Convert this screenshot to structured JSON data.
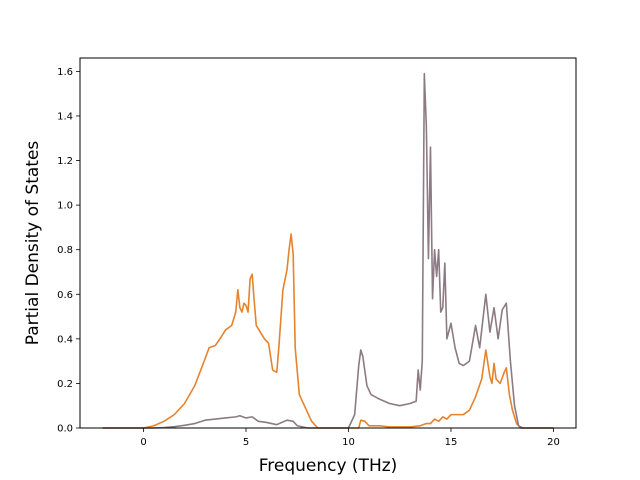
{
  "chart_data": {
    "type": "line",
    "title": "",
    "xlabel": "Frequency (THz)",
    "ylabel": "Partial Density of States",
    "xlim": [
      -3.1,
      21.1
    ],
    "ylim": [
      0.0,
      1.66
    ],
    "x_ticks": [
      0,
      5,
      10,
      15,
      20
    ],
    "x_tick_labels": [
      "0",
      "5",
      "10",
      "15",
      "20"
    ],
    "y_ticks": [
      0.0,
      0.2,
      0.4,
      0.6,
      0.8,
      1.0,
      1.2,
      1.4,
      1.6
    ],
    "y_tick_labels": [
      "0.0",
      "0.2",
      "0.4",
      "0.6",
      "0.8",
      "1.0",
      "1.2",
      "1.4",
      "1.6"
    ],
    "grid": false,
    "legend": "none",
    "series": [
      {
        "color": "#e6832c",
        "points": [
          [
            -2.0,
            0.0
          ],
          [
            -1.0,
            0.0
          ],
          [
            0.0,
            0.0
          ],
          [
            0.5,
            0.01
          ],
          [
            1.0,
            0.03
          ],
          [
            1.5,
            0.06
          ],
          [
            2.0,
            0.11
          ],
          [
            2.5,
            0.19
          ],
          [
            3.0,
            0.31
          ],
          [
            3.2,
            0.36
          ],
          [
            3.5,
            0.37
          ],
          [
            3.8,
            0.41
          ],
          [
            4.0,
            0.44
          ],
          [
            4.3,
            0.46
          ],
          [
            4.5,
            0.52
          ],
          [
            4.6,
            0.62
          ],
          [
            4.7,
            0.54
          ],
          [
            4.8,
            0.52
          ],
          [
            4.9,
            0.56
          ],
          [
            5.0,
            0.55
          ],
          [
            5.1,
            0.52
          ],
          [
            5.2,
            0.67
          ],
          [
            5.3,
            0.69
          ],
          [
            5.4,
            0.57
          ],
          [
            5.5,
            0.46
          ],
          [
            5.7,
            0.43
          ],
          [
            5.9,
            0.4
          ],
          [
            6.1,
            0.38
          ],
          [
            6.3,
            0.26
          ],
          [
            6.5,
            0.25
          ],
          [
            6.6,
            0.36
          ],
          [
            6.8,
            0.62
          ],
          [
            7.0,
            0.71
          ],
          [
            7.1,
            0.8
          ],
          [
            7.2,
            0.87
          ],
          [
            7.3,
            0.78
          ],
          [
            7.4,
            0.36
          ],
          [
            7.6,
            0.15
          ],
          [
            7.9,
            0.09
          ],
          [
            8.2,
            0.03
          ],
          [
            8.5,
            0.0
          ],
          [
            9.0,
            0.0
          ],
          [
            10.0,
            0.0
          ],
          [
            10.5,
            0.0
          ],
          [
            10.6,
            0.035
          ],
          [
            10.8,
            0.03
          ],
          [
            11.0,
            0.01
          ],
          [
            11.5,
            0.01
          ],
          [
            12.0,
            0.005
          ],
          [
            12.5,
            0.005
          ],
          [
            13.0,
            0.005
          ],
          [
            13.5,
            0.01
          ],
          [
            13.8,
            0.02
          ],
          [
            14.0,
            0.02
          ],
          [
            14.2,
            0.04
          ],
          [
            14.4,
            0.03
          ],
          [
            14.6,
            0.05
          ],
          [
            14.8,
            0.04
          ],
          [
            15.0,
            0.06
          ],
          [
            15.3,
            0.06
          ],
          [
            15.6,
            0.06
          ],
          [
            15.9,
            0.08
          ],
          [
            16.2,
            0.14
          ],
          [
            16.5,
            0.22
          ],
          [
            16.7,
            0.35
          ],
          [
            16.9,
            0.23
          ],
          [
            17.0,
            0.2
          ],
          [
            17.1,
            0.29
          ],
          [
            17.2,
            0.22
          ],
          [
            17.4,
            0.2
          ],
          [
            17.6,
            0.25
          ],
          [
            17.7,
            0.27
          ],
          [
            17.85,
            0.15
          ],
          [
            18.0,
            0.08
          ],
          [
            18.2,
            0.02
          ],
          [
            18.4,
            0.0
          ],
          [
            19.0,
            0.0
          ],
          [
            20.0,
            0.0
          ]
        ]
      },
      {
        "color": "#8c7b82",
        "points": [
          [
            -2.0,
            0.0
          ],
          [
            -1.0,
            0.0
          ],
          [
            0.0,
            0.0
          ],
          [
            0.5,
            0.0
          ],
          [
            1.0,
            0.002
          ],
          [
            1.5,
            0.006
          ],
          [
            2.0,
            0.012
          ],
          [
            2.5,
            0.02
          ],
          [
            3.0,
            0.035
          ],
          [
            3.5,
            0.04
          ],
          [
            4.0,
            0.045
          ],
          [
            4.5,
            0.05
          ],
          [
            4.7,
            0.055
          ],
          [
            5.0,
            0.045
          ],
          [
            5.3,
            0.05
          ],
          [
            5.6,
            0.03
          ],
          [
            6.0,
            0.025
          ],
          [
            6.5,
            0.015
          ],
          [
            7.0,
            0.035
          ],
          [
            7.3,
            0.03
          ],
          [
            7.5,
            0.01
          ],
          [
            8.0,
            0.0
          ],
          [
            9.0,
            0.0
          ],
          [
            10.0,
            0.0
          ],
          [
            10.3,
            0.06
          ],
          [
            10.5,
            0.28
          ],
          [
            10.6,
            0.35
          ],
          [
            10.7,
            0.32
          ],
          [
            10.9,
            0.19
          ],
          [
            11.1,
            0.15
          ],
          [
            11.5,
            0.13
          ],
          [
            12.0,
            0.11
          ],
          [
            12.5,
            0.1
          ],
          [
            13.0,
            0.11
          ],
          [
            13.3,
            0.12
          ],
          [
            13.4,
            0.26
          ],
          [
            13.5,
            0.17
          ],
          [
            13.6,
            0.3
          ],
          [
            13.7,
            1.59
          ],
          [
            13.8,
            1.35
          ],
          [
            13.9,
            0.76
          ],
          [
            14.0,
            1.26
          ],
          [
            14.1,
            0.58
          ],
          [
            14.2,
            0.8
          ],
          [
            14.3,
            0.68
          ],
          [
            14.4,
            0.8
          ],
          [
            14.5,
            0.52
          ],
          [
            14.6,
            0.54
          ],
          [
            14.7,
            0.74
          ],
          [
            14.8,
            0.4
          ],
          [
            15.0,
            0.47
          ],
          [
            15.2,
            0.36
          ],
          [
            15.4,
            0.29
          ],
          [
            15.6,
            0.28
          ],
          [
            15.9,
            0.3
          ],
          [
            16.2,
            0.46
          ],
          [
            16.4,
            0.36
          ],
          [
            16.7,
            0.6
          ],
          [
            16.9,
            0.43
          ],
          [
            17.1,
            0.54
          ],
          [
            17.3,
            0.4
          ],
          [
            17.5,
            0.53
          ],
          [
            17.7,
            0.56
          ],
          [
            17.9,
            0.3
          ],
          [
            18.1,
            0.1
          ],
          [
            18.3,
            0.01
          ],
          [
            18.5,
            0.0
          ],
          [
            19.0,
            0.0
          ],
          [
            20.0,
            0.0
          ]
        ]
      }
    ]
  }
}
